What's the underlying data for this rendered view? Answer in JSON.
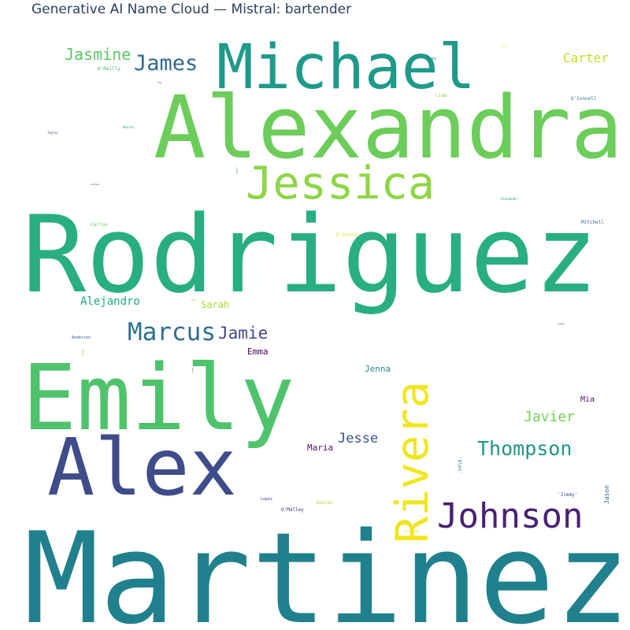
{
  "chart_data": {
    "type": "wordcloud",
    "title": "Generative AI Name Cloud — Mistral: bartender",
    "words": [
      {
        "text": "Martinez",
        "color": "#21808d"
      },
      {
        "text": "Rodriguez",
        "color": "#28ae80"
      },
      {
        "text": "Alexandra",
        "color": "#6ccd5a"
      },
      {
        "text": "Emily",
        "color": "#4fc36b"
      },
      {
        "text": "Alex",
        "color": "#3e4c8a"
      },
      {
        "text": "Michael",
        "color": "#1f9a8a"
      },
      {
        "text": "Jessica",
        "color": "#8ed645"
      },
      {
        "text": "Rivera",
        "color": "#f1e51d"
      },
      {
        "text": "Johnson",
        "color": "#482173"
      },
      {
        "text": "Thompson",
        "color": "#1f958b"
      },
      {
        "text": "Marcus",
        "color": "#2e6f8e"
      },
      {
        "text": "James",
        "color": "#306a8e"
      },
      {
        "text": "Jasmine",
        "color": "#5ac864"
      },
      {
        "text": "Jamie",
        "color": "#404688"
      },
      {
        "text": "Carter",
        "color": "#c0df25"
      },
      {
        "text": "Javier",
        "color": "#75d054"
      },
      {
        "text": "Jesse",
        "color": "#3a548c"
      },
      {
        "text": "Alejandro",
        "color": "#22a884"
      },
      {
        "text": "Sarah",
        "color": "#a8db34"
      },
      {
        "text": "Emma",
        "color": "#440154"
      },
      {
        "text": "Jenna",
        "color": "#26828e"
      },
      {
        "text": "Maria",
        "color": "#471164"
      },
      {
        "text": "Mia",
        "color": "#471365"
      },
      {
        "text": "Jason",
        "color": "#31668e"
      },
      {
        "text": "O'Reilly",
        "color": "#3fbc73"
      },
      {
        "text": "Liam",
        "color": "#8ed645"
      },
      {
        "text": "O'Connell",
        "color": "#287c8e"
      },
      {
        "text": "Chen",
        "color": "#2c728e"
      },
      {
        "text": "Mitchell",
        "color": "#33638d"
      },
      {
        "text": "Carlos",
        "color": "#5ac864"
      },
      {
        "text": "O'Connor",
        "color": "#d8e219"
      },
      {
        "text": "Anderson",
        "color": "#3b528b"
      },
      {
        "text": "Lopez",
        "color": "#414487"
      },
      {
        "text": "O'Malley",
        "color": "#46327e"
      },
      {
        "text": "Daniel",
        "color": "#b5de2b"
      },
      {
        "text": "'Jimmy'",
        "color": "#3e4989"
      },
      {
        "text": "'Alex'",
        "color": "#2a788e"
      },
      {
        "text": "Taylor",
        "color": "#3f4788"
      },
      {
        "text": "Benito",
        "color": "#20a386"
      },
      {
        "text": "Alexander",
        "color": "#1f9e89"
      },
      {
        "text": "Lopez",
        "color": "#482878"
      },
      {
        "text": "Tom",
        "color": "#424086"
      },
      {
        "text": "Jacob",
        "color": "#21918c"
      },
      {
        "text": "Andrea",
        "color": "#404588"
      },
      {
        "text": "Javi",
        "color": "#3b518b"
      },
      {
        "text": "Ava",
        "color": "#dde318"
      },
      {
        "text": "Hank",
        "color": "#84d44b"
      },
      {
        "text": "Sam",
        "color": "#a0da39"
      },
      {
        "text": "Sterling",
        "color": "#e2e418"
      },
      {
        "text": "Jake",
        "color": "#54c568"
      }
    ]
  }
}
